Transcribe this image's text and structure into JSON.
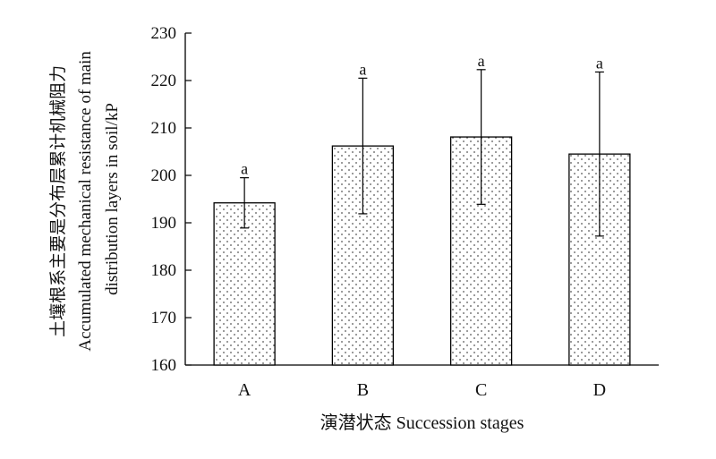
{
  "chart_data": {
    "type": "bar",
    "categories": [
      "A",
      "B",
      "C",
      "D"
    ],
    "series": [
      {
        "values": [
          194.2,
          206.2,
          208.1,
          204.5
        ],
        "errors": [
          5.3,
          14.3,
          14.2,
          17.3
        ]
      }
    ],
    "significance_labels": [
      "a",
      "a",
      "a",
      "a"
    ],
    "xlabel": "演潜状态 Succession stages",
    "ylabel": [
      "土壤根系主要是分布层累计机械阻力",
      "Accumulated mechanical resistance of main",
      "distribution layers in soil/kP"
    ],
    "ylim": [
      160,
      230
    ],
    "yticks": [
      160,
      170,
      180,
      190,
      200,
      210,
      220,
      230
    ],
    "grid": false,
    "bar_fill": "dotted pattern",
    "colors": {
      "bar_border": "#000000",
      "dot": "#555555",
      "axis": "#000000"
    }
  }
}
